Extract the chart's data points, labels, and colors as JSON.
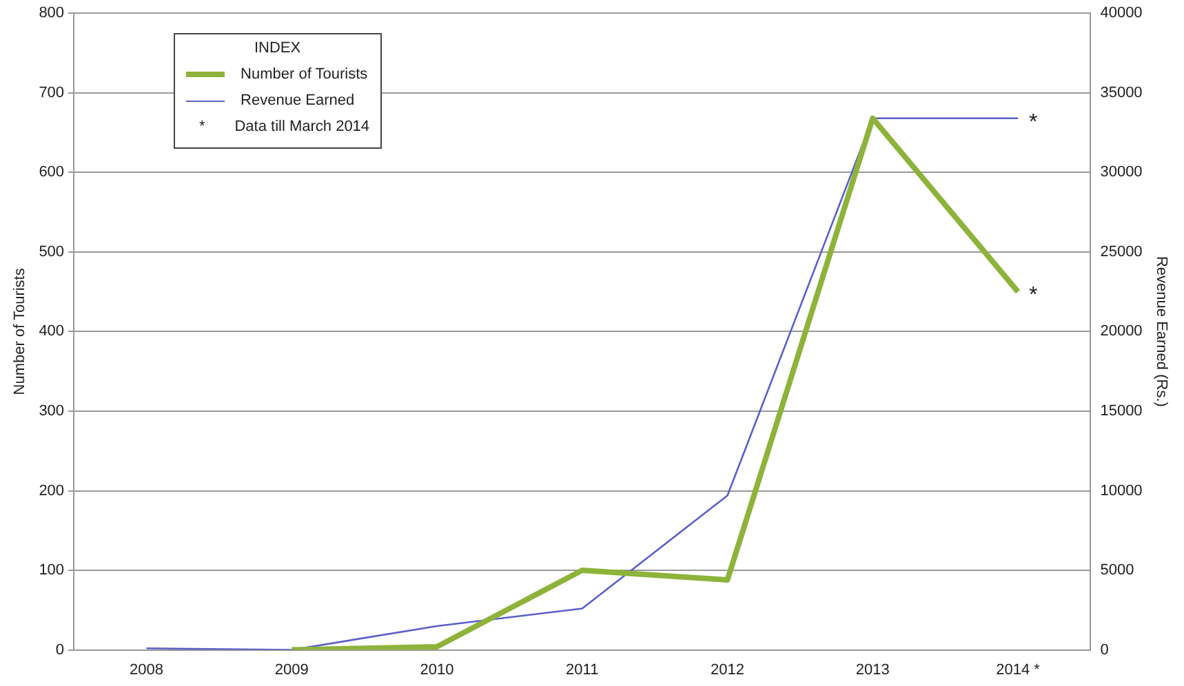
{
  "chart_data": {
    "type": "line",
    "ylabel": "Number of Tourists",
    "y2label": "Revenue Earned (Rs.)",
    "legend_title": "INDEX",
    "categories": [
      "2008",
      "2009",
      "2010",
      "2011",
      "2012",
      "2013",
      "2014 *"
    ],
    "series": [
      {
        "name": "Number of Tourists",
        "color": "#8db33a",
        "values": [
          null,
          0,
          4,
          100,
          88,
          668,
          450
        ]
      },
      {
        "name": "Revenue Earned",
        "color": "#5a5fc8",
        "axis": "y2",
        "values": [
          100,
          0,
          1500,
          2600,
          9700,
          33400,
          33400
        ]
      }
    ],
    "ylim": [
      0,
      800
    ],
    "yticks": [
      0,
      100,
      200,
      300,
      400,
      500,
      600,
      700,
      800
    ],
    "y2lim": [
      0,
      40000
    ],
    "y2ticks": [
      0,
      5000,
      10000,
      15000,
      20000,
      25000,
      30000,
      35000,
      40000
    ],
    "grid": "y",
    "legend": "top left",
    "marker": "none",
    "line_style": "solid",
    "annotations": [
      "* Data till March 2014",
      {
        "text": "*",
        "x": "2014 *",
        "y": 450
      },
      {
        "text": "*",
        "x": "2014 *",
        "y": 668
      }
    ]
  }
}
